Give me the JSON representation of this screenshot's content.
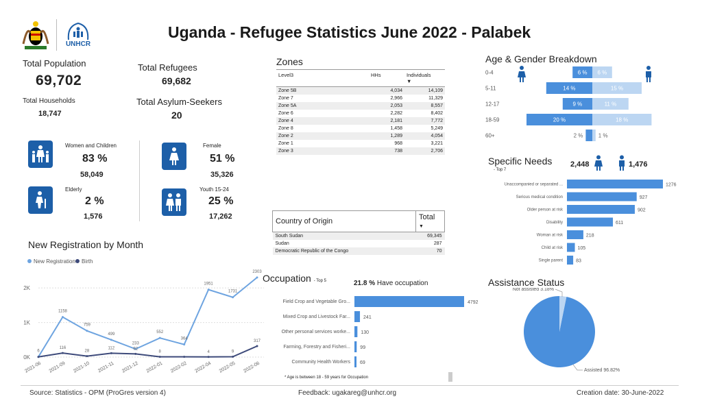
{
  "header": {
    "title": "Uganda - Refugee Statistics June 2022 - Palabek",
    "unhcr_text": "UNHCR"
  },
  "kpis": {
    "total_population_label": "Total Population",
    "total_population": "69,702",
    "total_refugees_label": "Total Refugees",
    "total_refugees": "69,682",
    "total_households_label": "Total Households",
    "total_households": "18,747",
    "total_asylum_label": "Total Asylum-Seekers",
    "total_asylum": "20"
  },
  "demographics": {
    "women_children": {
      "label": "Women and Children",
      "pct": "83 %",
      "count": "58,049"
    },
    "female": {
      "label": "Female",
      "pct": "51 %",
      "count": "35,326"
    },
    "elderly": {
      "label": "Elderly",
      "pct": "2 %",
      "count": "1,576"
    },
    "youth": {
      "label": "Youth 15-24",
      "pct": "25 %",
      "count": "17,262"
    }
  },
  "zones": {
    "title": "Zones",
    "headers": [
      "Level3",
      "HHs",
      "Individuals"
    ],
    "rows": [
      [
        "Zone 5B",
        "4,034",
        "14,109"
      ],
      [
        "Zone 7",
        "2,966",
        "11,329"
      ],
      [
        "Zone 5A",
        "2,053",
        "8,557"
      ],
      [
        "Zone 6",
        "2,282",
        "8,402"
      ],
      [
        "Zone 4",
        "2,181",
        "7,772"
      ],
      [
        "Zone 8",
        "1,458",
        "5,249"
      ],
      [
        "Zone 2",
        "1,289",
        "4,054"
      ],
      [
        "Zone 1",
        "968",
        "3,221"
      ],
      [
        "Zone 3",
        "738",
        "2,706"
      ]
    ]
  },
  "country": {
    "headers": [
      "Country of Origin",
      "Total"
    ],
    "rows": [
      [
        "South Sudan",
        "69,345"
      ],
      [
        "Sudan",
        "287"
      ],
      [
        "Democratic Republic of the Congo",
        "70"
      ]
    ]
  },
  "age_gender": {
    "title": "Age & Gender Breakdown",
    "groups": [
      "0-4",
      "5-11",
      "12-17",
      "18-59",
      "60+"
    ],
    "male": [
      6,
      14,
      9,
      20,
      2
    ],
    "female": [
      6,
      15,
      11,
      18,
      1
    ],
    "male_labels": [
      "6 %",
      "14 %",
      "9 %",
      "20 %",
      "2 %"
    ],
    "female_labels": [
      "6 %",
      "15 %",
      "11 %",
      "18 %",
      "1 %"
    ],
    "colors": {
      "male": "#4a8fdc",
      "female": "#bcd6f2"
    }
  },
  "specific_needs": {
    "title": "Specific Needs",
    "subtitle": "- Top 7",
    "female_count": "2,448",
    "male_count": "1,476",
    "categories": [
      "Unaccompanied or separated ...",
      "Serious medical condition",
      "Older person at risk",
      "Disability",
      "Woman at risk",
      "Child at risk",
      "Single parent"
    ],
    "values": [
      1276,
      927,
      902,
      611,
      218,
      105,
      83
    ],
    "value_labels": [
      "1276",
      "927",
      "902",
      "611",
      "218",
      "105",
      "83"
    ]
  },
  "occupation": {
    "title": "Occupation",
    "subtitle": "- Top 5",
    "have_pct": "21.8 %",
    "have_label": "Have occupation",
    "categories": [
      "Field Crop and Vegetable Gro...",
      "Mixed Crop and Livestock Far...",
      "Other personal services worke...",
      "Farming, Forestry and Fisheri...",
      "Community Health Workers"
    ],
    "values": [
      4792,
      241,
      130,
      99,
      69
    ],
    "value_labels": [
      "4792",
      "241",
      "130",
      "99",
      "69"
    ],
    "footnote": "* Age is between 18 - 59 years for Occupation"
  },
  "assistance": {
    "title": "Assistance Status",
    "not_assisted_label": "Not assisted 3.18%",
    "assisted_label": "Assisted 96.82%",
    "assisted_pct": 96.82,
    "not_assisted_pct": 3.18,
    "colors": {
      "assisted": "#4a8fdc",
      "not_assisted": "#bcd6f2"
    }
  },
  "chart_data": {
    "type": "line",
    "title": "New Registration by Month",
    "x": [
      "2021-06",
      "2021-09",
      "2021-10",
      "2021-11",
      "2021-12",
      "2022-01",
      "2022-02",
      "2022-04",
      "2022-05",
      "2022-06"
    ],
    "series": [
      {
        "name": "New Registration",
        "values": [
          6,
          1158,
          759,
          499,
          233,
          552,
          364,
          1951,
          1731,
          2303
        ],
        "labels": [
          "6",
          "1158",
          "759",
          "499",
          "233",
          "552",
          "364",
          "1951",
          "1731",
          "2303"
        ]
      },
      {
        "name": "Birth",
        "values": [
          5,
          116,
          28,
          112,
          92,
          8,
          7,
          4,
          9,
          317
        ],
        "labels": [
          "",
          "116",
          "28",
          "112",
          "92",
          "8",
          "",
          "4",
          "9",
          "317"
        ]
      }
    ],
    "ytick_labels": [
      "0K",
      "1K",
      "2K"
    ],
    "yticks": [
      0,
      1000,
      2000
    ],
    "ylim": [
      0,
      2400
    ],
    "grid": true,
    "legend": "top-left",
    "colors": {
      "new_registration": "#6ea4e0",
      "birth": "#3d4a7a"
    }
  },
  "footer": {
    "source": "Source: Statistics - OPM (ProGres version 4)",
    "feedback": "Feedback: ugakareg@unhcr.org",
    "creation": "Creation date: 30-June-2022"
  }
}
